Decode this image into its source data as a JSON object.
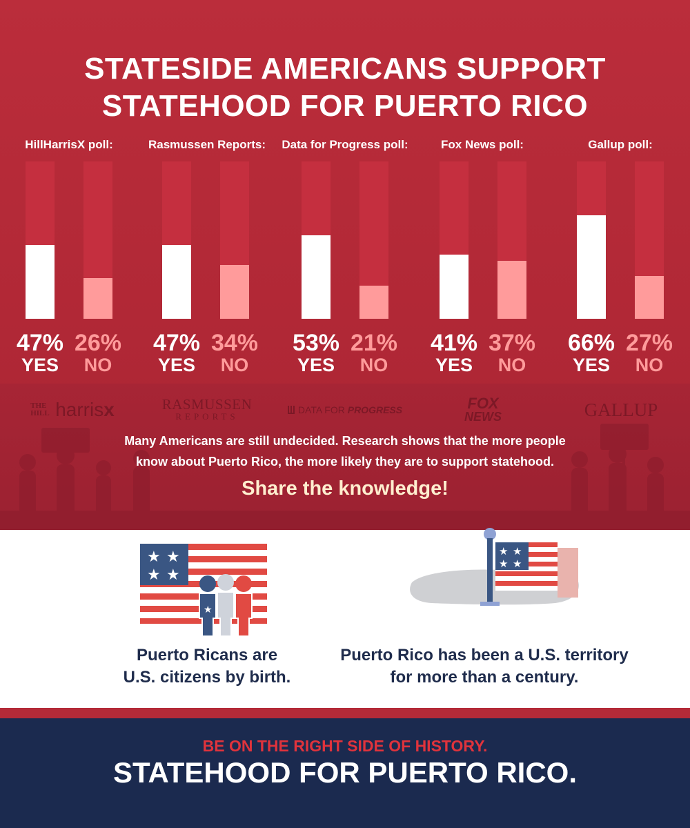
{
  "title": {
    "line1": "Stateside Americans support",
    "line2": "statehood for Puerto Rico"
  },
  "chart_data": {
    "type": "bar",
    "categories": [
      "HillHarrisX poll:",
      "Rasmussen Reports:",
      "Data for Progress poll:",
      "Fox News poll:",
      "Gallup poll:"
    ],
    "series": [
      {
        "name": "YES",
        "values": [
          47,
          47,
          53,
          41,
          66
        ],
        "labels": [
          "47%",
          "47%",
          "53%",
          "41%",
          "66%"
        ]
      },
      {
        "name": "NO",
        "values": [
          26,
          34,
          21,
          37,
          27
        ],
        "labels": [
          "26%",
          "34%",
          "21%",
          "37%",
          "27%"
        ]
      }
    ],
    "ylim": [
      0,
      100
    ],
    "colors": {
      "yes": "#ffffff",
      "no": "#ff9b9b",
      "track": "#c52f3f"
    }
  },
  "logos": [
    {
      "name": "hill-harrisx-logo",
      "text": "THE HILL harrisX"
    },
    {
      "name": "rasmussen-logo",
      "text": "RASMUSSEN REPORTS"
    },
    {
      "name": "data-for-progress-logo",
      "text": "DATA FOR PROGRESS"
    },
    {
      "name": "fox-news-logo",
      "text": "FOX NEWS"
    },
    {
      "name": "gallup-logo",
      "text": "GALLUP"
    }
  ],
  "note": {
    "line1": "Many Americans are still undecided. Research shows that the more people",
    "line2": "know about Puerto Rico, the more likely they are to support statehood."
  },
  "share": "Share the knowledge!",
  "facts": {
    "citizens": {
      "line1": "Puerto Ricans are",
      "line2": "U.S. citizens by birth."
    },
    "territory": {
      "line1": "Puerto Rico has been a U.S. territory",
      "line2": "for more than a century."
    }
  },
  "footer": {
    "line1": "Be on the right side of history.",
    "line2": "Statehood for Puerto Rico."
  },
  "colors": {
    "red": "#b52a37",
    "navy": "#1b2a4f",
    "pink": "#ff9b9b",
    "accent_red": "#e0333c"
  }
}
